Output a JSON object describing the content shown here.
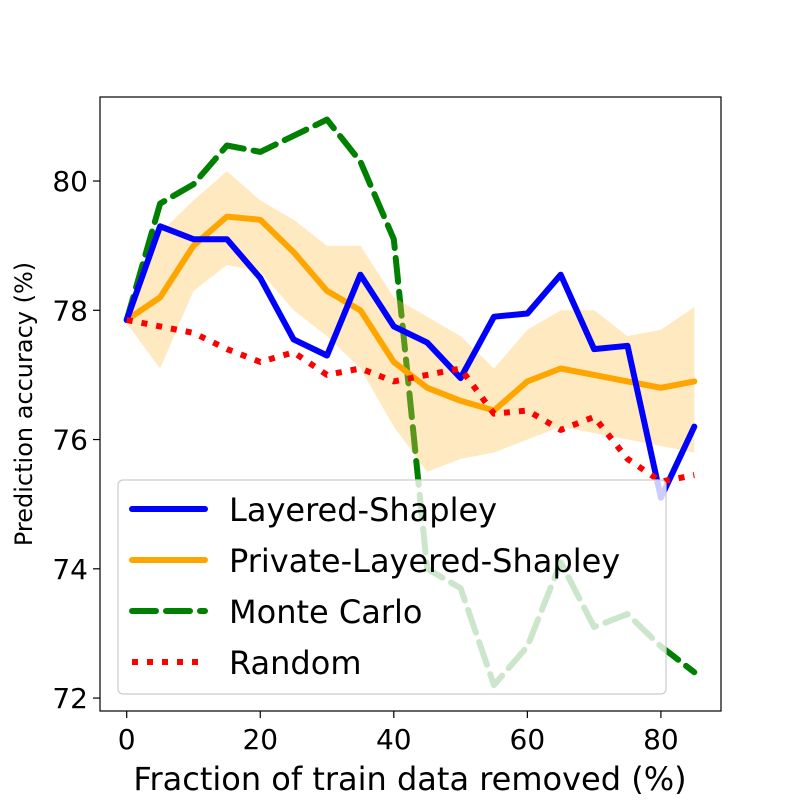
{
  "chart_data": {
    "type": "line",
    "title": "",
    "xlabel": "Fraction of train data removed (%)",
    "ylabel": "Prediction accuracy (%)",
    "xlim": [
      -4,
      89
    ],
    "ylim": [
      71.8,
      81.3
    ],
    "xticks": [
      0,
      20,
      40,
      60,
      80
    ],
    "yticks": [
      72,
      74,
      76,
      78,
      80
    ],
    "x": [
      0,
      5,
      10,
      15,
      20,
      25,
      30,
      35,
      40,
      45,
      50,
      55,
      60,
      65,
      70,
      75,
      80,
      85
    ],
    "legend_position": "lower-left",
    "series": [
      {
        "name": "Monte Carlo",
        "color": "#008000",
        "style": "dashed",
        "values": [
          77.85,
          79.65,
          79.95,
          80.55,
          80.45,
          80.7,
          80.95,
          80.3,
          79.1,
          74.0,
          73.7,
          72.2,
          72.8,
          74.1,
          73.1,
          73.3,
          72.8,
          72.4
        ]
      },
      {
        "name": "Private-Layered-Shapley",
        "color": "#ffa500",
        "style": "solid",
        "band_color": "#ffc04d",
        "values": [
          77.85,
          78.2,
          79.0,
          79.45,
          79.4,
          78.9,
          78.3,
          78.0,
          77.2,
          76.8,
          76.6,
          76.45,
          76.9,
          77.1,
          77.0,
          76.9,
          76.8,
          76.9
        ],
        "lower": [
          77.8,
          77.1,
          78.3,
          78.7,
          78.6,
          78.0,
          77.6,
          77.1,
          76.2,
          75.5,
          75.7,
          75.8,
          76.0,
          76.2,
          76.1,
          76.0,
          75.9,
          75.8
        ],
        "upper": [
          77.9,
          79.2,
          79.7,
          80.15,
          79.7,
          79.4,
          79.0,
          79.0,
          78.2,
          77.9,
          77.6,
          77.1,
          77.7,
          78.0,
          78.0,
          77.6,
          77.7,
          78.05
        ]
      },
      {
        "name": "Layered-Shapley",
        "color": "#0000ff",
        "style": "solid",
        "values": [
          77.85,
          79.3,
          79.1,
          79.1,
          78.5,
          77.55,
          77.3,
          78.55,
          77.75,
          77.5,
          76.95,
          77.9,
          77.95,
          78.55,
          77.4,
          77.45,
          75.1,
          76.2
        ]
      },
      {
        "name": "Random",
        "color": "#ff0000",
        "style": "dotted",
        "values": [
          77.85,
          77.75,
          77.65,
          77.4,
          77.2,
          77.35,
          77.0,
          77.1,
          76.9,
          77.0,
          77.1,
          76.4,
          76.45,
          76.15,
          76.35,
          75.7,
          75.35,
          75.45
        ]
      }
    ],
    "legend": [
      {
        "name": "Layered-Shapley",
        "color": "#0000ff",
        "style": "solid"
      },
      {
        "name": "Private-Layered-Shapley",
        "color": "#ffa500",
        "style": "solid"
      },
      {
        "name": "Monte Carlo",
        "color": "#008000",
        "style": "dashed"
      },
      {
        "name": "Random",
        "color": "#ff0000",
        "style": "dotted"
      }
    ]
  }
}
